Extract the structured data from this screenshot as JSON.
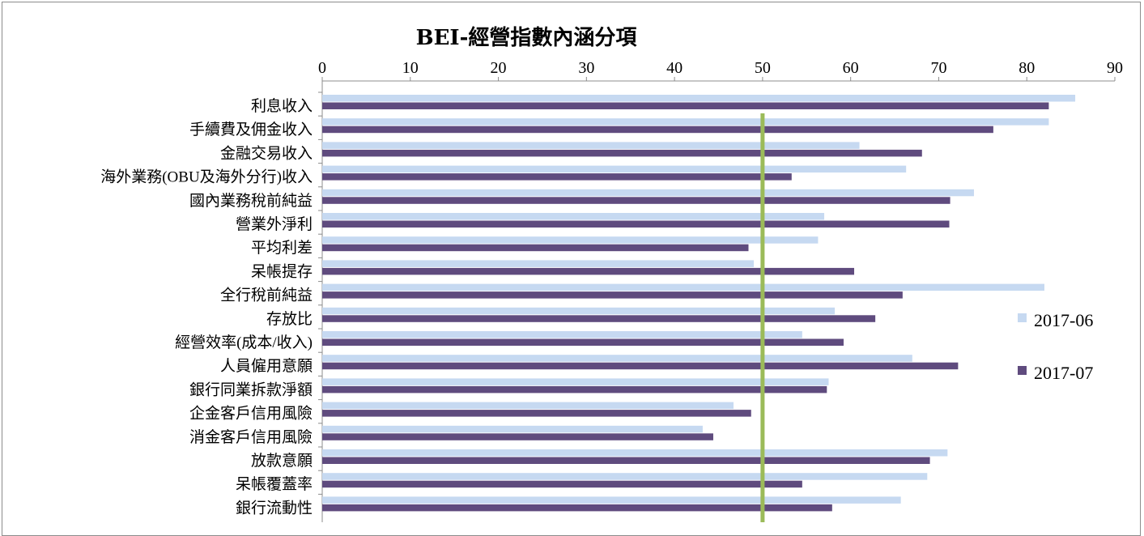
{
  "chart_data": {
    "type": "bar",
    "orientation": "horizontal",
    "title": "BEI-經營指數內涵分項",
    "xlim": [
      0,
      90
    ],
    "x_ticks": [
      0,
      10,
      20,
      30,
      40,
      50,
      60,
      70,
      80,
      90
    ],
    "x_axis_position": "top",
    "reference_line": {
      "value": 50,
      "color": "#9bbb59"
    },
    "grid": false,
    "legend_position": "right",
    "categories": [
      "利息收入",
      "手續費及佣金收入",
      "金融交易收入",
      "海外業務(OBU及海外分行)收入",
      "國內業務稅前純益",
      "營業外淨利",
      "平均利差",
      "呆帳提存",
      "全行稅前純益",
      "存放比",
      "經營效率(成本/收入)",
      "人員僱用意願",
      "銀行同業拆款淨額",
      "企金客戶信用風險",
      "消金客戶信用風險",
      "放款意願",
      "呆帳覆蓋率",
      "銀行流動性"
    ],
    "series": [
      {
        "name": "2017-06",
        "color": "#c6d9f1",
        "values": [
          85.5,
          82.5,
          61.0,
          66.3,
          74.0,
          57.0,
          56.3,
          49.0,
          82.0,
          58.2,
          54.5,
          67.0,
          57.5,
          46.7,
          43.2,
          71.0,
          68.7,
          65.7
        ]
      },
      {
        "name": "2017-07",
        "color": "#5f4b7e",
        "values": [
          82.5,
          76.2,
          68.1,
          53.3,
          71.3,
          71.2,
          48.4,
          60.4,
          65.9,
          62.8,
          59.2,
          72.2,
          57.3,
          48.7,
          44.4,
          69.0,
          54.5,
          57.9
        ]
      }
    ]
  }
}
